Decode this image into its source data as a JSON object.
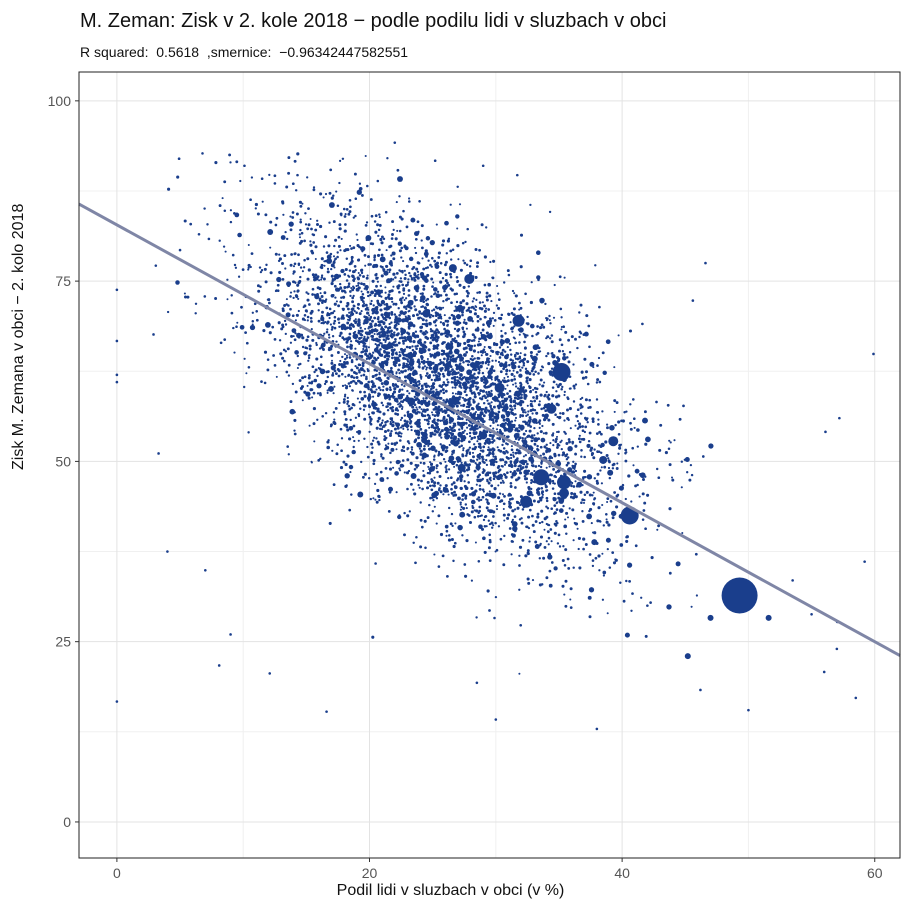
{
  "chart_data": {
    "type": "scatter",
    "title": "M. Zeman: Zisk v 2. kole 2018 − podle podilu lidi v sluzbach v obci",
    "subtitle": "R squared:  0.5618  ,smernice:  −0.96342447582551",
    "xlabel": "Podil lidi v sluzbach v obci (v %)",
    "ylabel": "Zisk M. Zemana v obci − 2. kolo 2018",
    "xlim": [
      -3,
      62
    ],
    "ylim": [
      -5,
      104
    ],
    "x_ticks": [
      0,
      20,
      40,
      60
    ],
    "y_ticks": [
      0,
      25,
      50,
      75,
      100
    ],
    "grid": true,
    "legend": "none",
    "regression_line": {
      "intercept": 82.8,
      "slope": -0.9634,
      "color": "#7f86a6"
    },
    "point_color": "#1a3e8c",
    "scatter_cloud": {
      "approx_points": 5000,
      "center_x": 26,
      "center_y": 58,
      "sd_x": 7,
      "sd_y": 9,
      "description": "dense cloud of small points following the regression trend"
    },
    "highlighted_points": [
      {
        "x": 49.3,
        "y": 31.4,
        "size": 18
      },
      {
        "x": 35.2,
        "y": 62.4,
        "size": 9
      },
      {
        "x": 40.6,
        "y": 42.5,
        "size": 9
      },
      {
        "x": 33.6,
        "y": 47.8,
        "size": 8
      },
      {
        "x": 35.4,
        "y": 47.1,
        "size": 7
      },
      {
        "x": 31.8,
        "y": 69.5,
        "size": 6
      },
      {
        "x": 32.4,
        "y": 44.4,
        "size": 6
      },
      {
        "x": 39.3,
        "y": 52.8,
        "size": 5
      },
      {
        "x": 27.9,
        "y": 75.3,
        "size": 5
      },
      {
        "x": 26.6,
        "y": 76.8,
        "size": 4
      },
      {
        "x": 35.4,
        "y": 45.6,
        "size": 5
      },
      {
        "x": 34.4,
        "y": 57.3,
        "size": 5
      },
      {
        "x": 30.3,
        "y": 60.2,
        "size": 5
      },
      {
        "x": 24.5,
        "y": 70.5,
        "size": 4
      },
      {
        "x": 38.5,
        "y": 50.2,
        "size": 4
      },
      {
        "x": 29.0,
        "y": 53.6,
        "size": 4
      },
      {
        "x": 45.2,
        "y": 23.0,
        "size": 3
      },
      {
        "x": 47.0,
        "y": 28.3,
        "size": 3
      },
      {
        "x": 51.6,
        "y": 28.3,
        "size": 3
      },
      {
        "x": 23.3,
        "y": 58.3,
        "size": 4
      },
      {
        "x": 27.3,
        "y": 49.1,
        "size": 4
      },
      {
        "x": 37.8,
        "y": 38.8,
        "size": 3
      }
    ],
    "outlier_points": [
      [
        0,
        16.7
      ],
      [
        0,
        73.8
      ],
      [
        0,
        66.7
      ],
      [
        0,
        62.0
      ],
      [
        0,
        61.0
      ],
      [
        8.1,
        21.7
      ],
      [
        12.1,
        20.6
      ],
      [
        16.6,
        15.3
      ],
      [
        10.1,
        91.0
      ],
      [
        11.5,
        89.2
      ],
      [
        14.3,
        89.7
      ],
      [
        22.0,
        94.2
      ],
      [
        25.2,
        91.7
      ],
      [
        29.0,
        91.0
      ],
      [
        31.7,
        89.7
      ],
      [
        9.3,
        84.4
      ],
      [
        6.5,
        81.5
      ],
      [
        5.0,
        79.3
      ],
      [
        30.0,
        14.2
      ],
      [
        38.0,
        12.9
      ],
      [
        28.5,
        19.3
      ],
      [
        46.2,
        18.3
      ],
      [
        50.0,
        15.5
      ],
      [
        56.0,
        20.8
      ],
      [
        58.5,
        17.2
      ],
      [
        59.9,
        64.9
      ],
      [
        57.2,
        56.0
      ],
      [
        56.1,
        54.1
      ],
      [
        59.2,
        36.1
      ],
      [
        46.6,
        77.5
      ],
      [
        45.6,
        72.3
      ],
      [
        4.0,
        37.5
      ],
      [
        3.3,
        51.1
      ],
      [
        2.9,
        67.6
      ],
      [
        7.0,
        34.9
      ],
      [
        9.0,
        26.0
      ],
      [
        21.0,
        78.0
      ],
      [
        18.0,
        85.0
      ],
      [
        42.0,
        30.0
      ],
      [
        53.5,
        33.5
      ],
      [
        55.0,
        28.8
      ],
      [
        57.0,
        24.0
      ]
    ]
  }
}
